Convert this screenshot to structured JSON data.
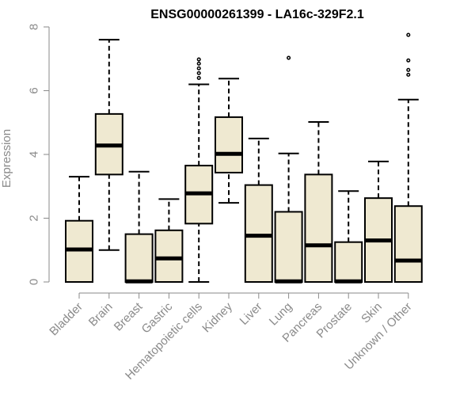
{
  "chart_data": {
    "type": "boxplot",
    "title": "ENSG00000261399 - LA16c-329F2.1",
    "xlabel": "",
    "ylabel": "Expression",
    "ylim": [
      0,
      8
    ],
    "yticks": [
      0,
      2,
      4,
      6,
      8
    ],
    "box_color": "#efe9d1",
    "line_color": "#000000",
    "axis_color": "#8a8a8a",
    "categories": [
      "Bladder",
      "Brain",
      "Breast",
      "Gastric",
      "Hematopoietic cells",
      "Kidney",
      "Liver",
      "Lung",
      "Pancreas",
      "Prostate",
      "Skin",
      "Unknown / Other"
    ],
    "boxes": [
      {
        "min": 0.0,
        "q1": 0.0,
        "median": 1.02,
        "q3": 1.92,
        "max": 3.3,
        "outliers": []
      },
      {
        "min": 1.0,
        "q1": 3.37,
        "median": 4.28,
        "q3": 5.27,
        "max": 7.6,
        "outliers": []
      },
      {
        "min": 0.0,
        "q1": 0.0,
        "median": 0.02,
        "q3": 1.5,
        "max": 3.46,
        "outliers": []
      },
      {
        "min": 0.0,
        "q1": 0.0,
        "median": 0.74,
        "q3": 1.62,
        "max": 2.6,
        "outliers": []
      },
      {
        "min": 0.0,
        "q1": 1.83,
        "median": 2.78,
        "q3": 3.65,
        "max": 6.2,
        "outliers": [
          6.4,
          6.55,
          6.7,
          6.85,
          6.98
        ]
      },
      {
        "min": 2.48,
        "q1": 3.43,
        "median": 4.02,
        "q3": 5.17,
        "max": 6.38,
        "outliers": []
      },
      {
        "min": 0.0,
        "q1": 0.0,
        "median": 1.45,
        "q3": 3.04,
        "max": 4.5,
        "outliers": []
      },
      {
        "min": 0.0,
        "q1": 0.0,
        "median": 0.02,
        "q3": 2.2,
        "max": 4.03,
        "outliers": [
          7.03
        ]
      },
      {
        "min": 0.0,
        "q1": 0.0,
        "median": 1.15,
        "q3": 3.37,
        "max": 5.02,
        "outliers": []
      },
      {
        "min": 0.0,
        "q1": 0.0,
        "median": 0.02,
        "q3": 1.25,
        "max": 2.85,
        "outliers": []
      },
      {
        "min": 0.0,
        "q1": 0.0,
        "median": 1.3,
        "q3": 2.63,
        "max": 3.78,
        "outliers": []
      },
      {
        "min": 0.0,
        "q1": 0.0,
        "median": 0.67,
        "q3": 2.38,
        "max": 5.72,
        "outliers": [
          6.5,
          6.65,
          6.95,
          7.75
        ]
      }
    ]
  }
}
